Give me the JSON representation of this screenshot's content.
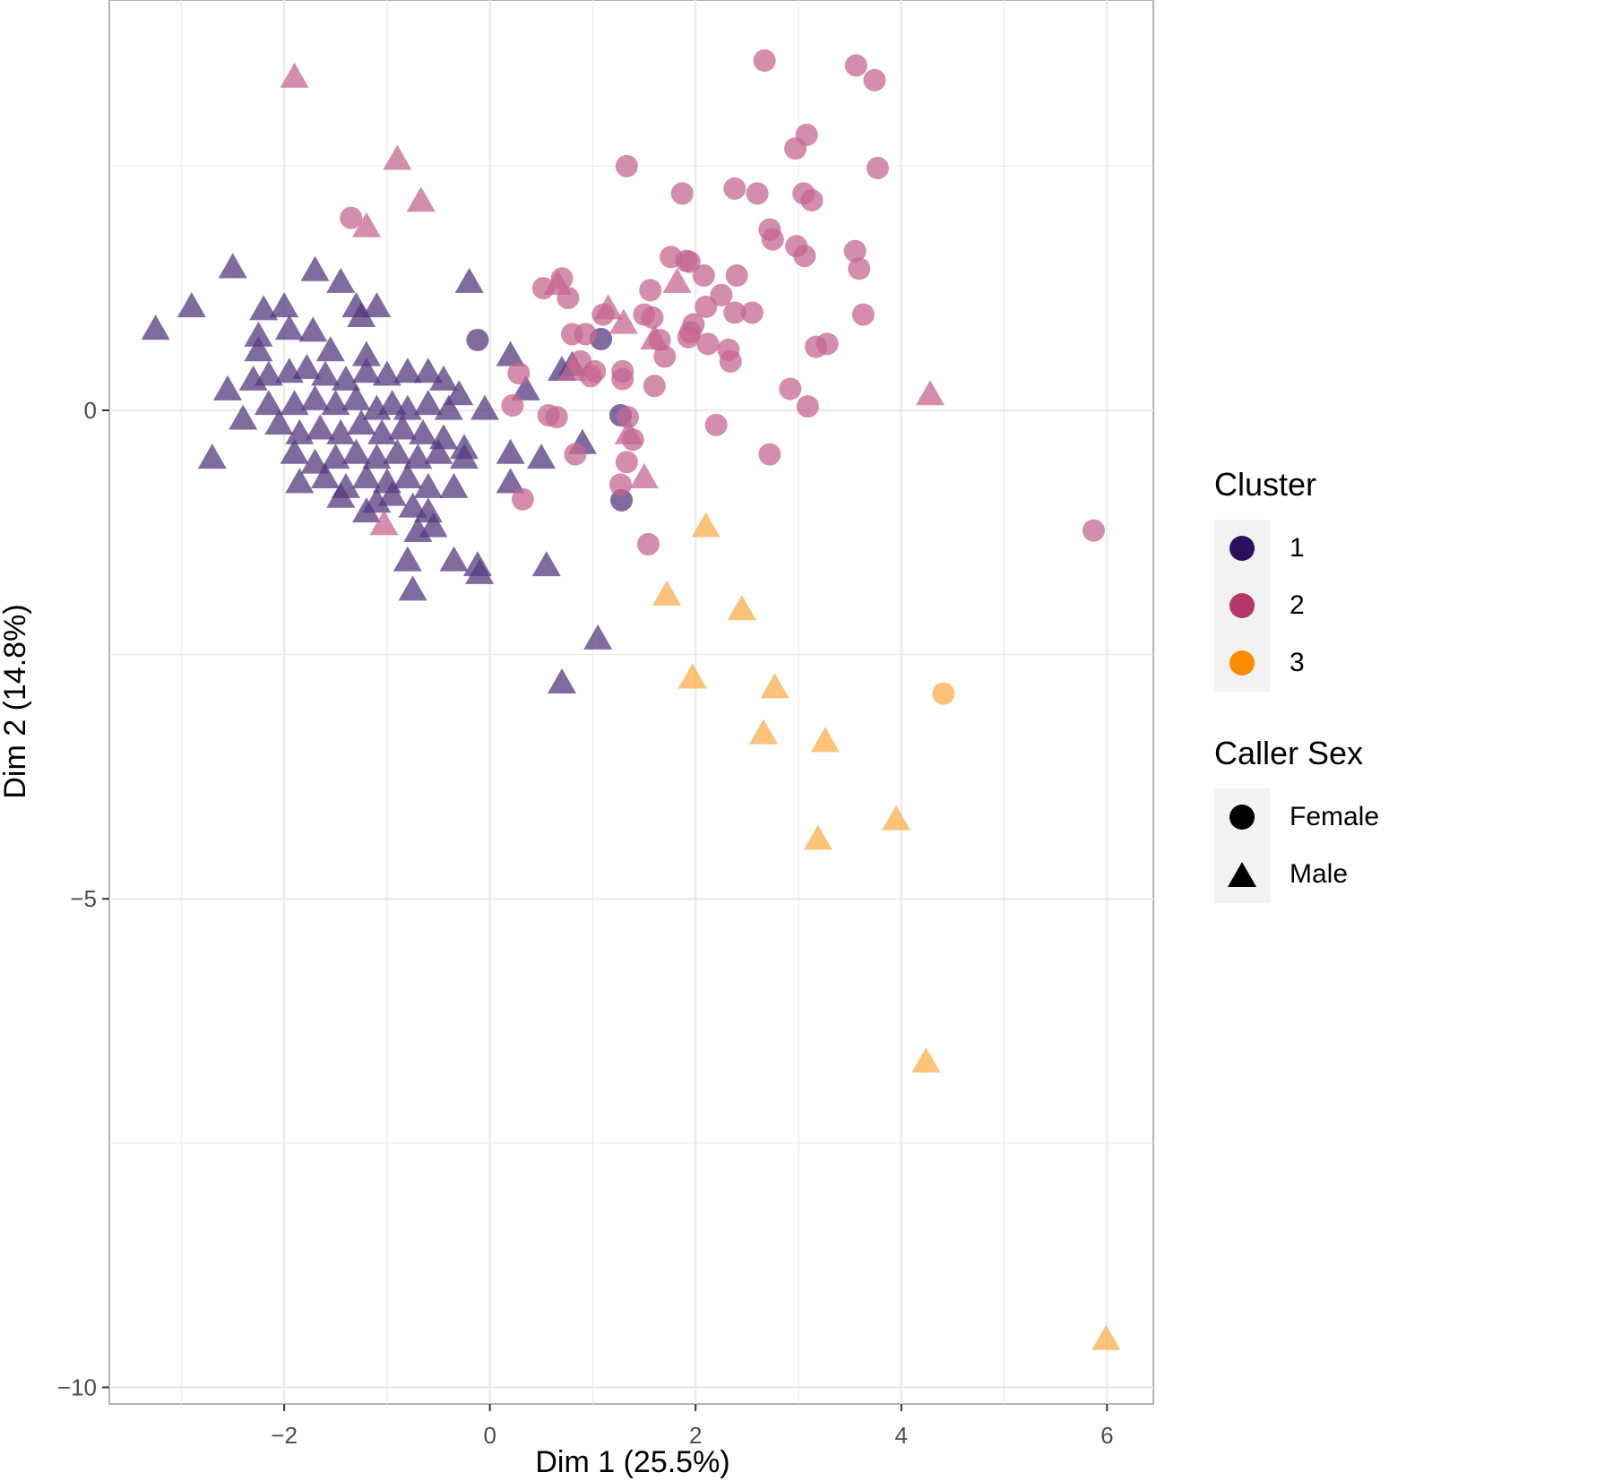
{
  "chart_data": {
    "type": "scatter",
    "title": "",
    "xlabel": "Dim 1 (25.5%)",
    "ylabel": "Dim 2 (14.8%)",
    "xlim": [
      -3.7,
      6.45
    ],
    "ylim": [
      -10.17,
      4.2
    ],
    "x_ticks": [
      -2,
      0,
      2,
      4,
      6
    ],
    "x_tick_labels": [
      "−2",
      "0",
      "2",
      "4",
      "6"
    ],
    "y_ticks": [
      -10,
      -5,
      0
    ],
    "y_tick_labels": [
      "−10",
      "−5",
      "0"
    ],
    "grid": true,
    "legend_position": "right",
    "legends": [
      {
        "title": "Cluster",
        "entries": [
          {
            "label": "1",
            "color": "#2d0f5e"
          },
          {
            "label": "2",
            "color": "#b5386a"
          },
          {
            "label": "3",
            "color": "#fb8c00"
          }
        ]
      },
      {
        "title": "Caller Sex",
        "entries": [
          {
            "label": "Female",
            "shape": "circle"
          },
          {
            "label": "Male",
            "shape": "triangle"
          }
        ]
      }
    ],
    "colors": {
      "1": "#55397f",
      "2": "#c46792",
      "3": "#f9ad4e"
    },
    "series": [
      {
        "name": "1",
        "female": [
          [
            -0.12,
            0.72
          ],
          [
            1.08,
            0.73
          ],
          [
            1.27,
            -0.05
          ],
          [
            1.28,
            -0.92
          ]
        ],
        "male": [
          [
            -3.25,
            0.82
          ],
          [
            -2.9,
            1.05
          ],
          [
            -2.5,
            1.45
          ],
          [
            -2.2,
            1.02
          ],
          [
            -2.25,
            0.75
          ],
          [
            -2.25,
            0.6
          ],
          [
            -2.0,
            1.05
          ],
          [
            -1.95,
            0.82
          ],
          [
            -1.7,
            1.42
          ],
          [
            -1.72,
            0.8
          ],
          [
            -1.45,
            1.3
          ],
          [
            -1.3,
            1.05
          ],
          [
            -1.25,
            0.95
          ],
          [
            -1.1,
            1.05
          ],
          [
            -1.55,
            0.6
          ],
          [
            -1.2,
            0.55
          ],
          [
            -2.55,
            0.2
          ],
          [
            -2.3,
            0.3
          ],
          [
            -2.15,
            0.35
          ],
          [
            -1.95,
            0.38
          ],
          [
            -1.78,
            0.42
          ],
          [
            -1.6,
            0.35
          ],
          [
            -1.4,
            0.3
          ],
          [
            -1.2,
            0.38
          ],
          [
            -1.0,
            0.35
          ],
          [
            -0.8,
            0.38
          ],
          [
            -0.6,
            0.38
          ],
          [
            -0.45,
            0.3
          ],
          [
            -0.3,
            0.15
          ],
          [
            -0.05,
            0.0
          ],
          [
            -2.4,
            -0.1
          ],
          [
            -2.15,
            0.05
          ],
          [
            -1.9,
            0.05
          ],
          [
            -1.7,
            0.1
          ],
          [
            -1.5,
            0.05
          ],
          [
            -1.3,
            0.1
          ],
          [
            -1.1,
            0.0
          ],
          [
            -0.95,
            0.05
          ],
          [
            -0.8,
            0.0
          ],
          [
            -0.6,
            0.05
          ],
          [
            -0.4,
            0.0
          ],
          [
            -2.05,
            -0.15
          ],
          [
            -1.85,
            -0.25
          ],
          [
            -1.65,
            -0.2
          ],
          [
            -1.45,
            -0.25
          ],
          [
            -1.25,
            -0.15
          ],
          [
            -1.05,
            -0.25
          ],
          [
            -0.85,
            -0.2
          ],
          [
            -0.65,
            -0.25
          ],
          [
            -0.45,
            -0.3
          ],
          [
            -0.25,
            -0.4
          ],
          [
            -2.7,
            -0.5
          ],
          [
            -1.9,
            -0.45
          ],
          [
            -1.7,
            -0.55
          ],
          [
            -1.5,
            -0.5
          ],
          [
            -1.3,
            -0.45
          ],
          [
            -1.1,
            -0.5
          ],
          [
            -0.9,
            -0.45
          ],
          [
            -0.7,
            -0.5
          ],
          [
            -0.5,
            -0.45
          ],
          [
            -0.25,
            -0.5
          ],
          [
            -1.85,
            -0.75
          ],
          [
            -1.6,
            -0.7
          ],
          [
            -1.4,
            -0.8
          ],
          [
            -1.2,
            -0.7
          ],
          [
            -1.0,
            -0.75
          ],
          [
            -0.8,
            -0.7
          ],
          [
            -0.6,
            -0.8
          ],
          [
            -0.35,
            -0.8
          ],
          [
            -1.45,
            -0.9
          ],
          [
            -1.1,
            -0.95
          ],
          [
            -0.95,
            -0.88
          ],
          [
            -0.75,
            -1.0
          ],
          [
            -0.6,
            -1.05
          ],
          [
            -1.2,
            -1.05
          ],
          [
            -0.7,
            -1.25
          ],
          [
            -0.55,
            -1.2
          ],
          [
            -0.8,
            -1.55
          ],
          [
            -0.75,
            -1.85
          ],
          [
            -0.35,
            -1.55
          ],
          [
            -0.12,
            -1.6
          ],
          [
            -0.1,
            -1.68
          ],
          [
            0.2,
            0.55
          ],
          [
            0.35,
            0.2
          ],
          [
            0.2,
            -0.45
          ],
          [
            0.2,
            -0.75
          ],
          [
            0.5,
            -0.5
          ],
          [
            0.55,
            -1.6
          ],
          [
            0.7,
            0.4
          ],
          [
            0.8,
            0.45
          ],
          [
            0.9,
            -0.35
          ],
          [
            1.05,
            -2.35
          ],
          [
            0.7,
            -2.8
          ],
          [
            -0.2,
            1.3
          ]
        ]
      },
      {
        "name": "2",
        "female": [
          [
            2.67,
            3.58
          ],
          [
            3.56,
            3.53
          ],
          [
            3.74,
            3.38
          ],
          [
            1.33,
            2.5
          ],
          [
            3.08,
            2.82
          ],
          [
            2.97,
            2.68
          ],
          [
            3.77,
            2.48
          ],
          [
            1.87,
            2.22
          ],
          [
            2.38,
            2.27
          ],
          [
            2.6,
            2.22
          ],
          [
            3.05,
            2.22
          ],
          [
            3.13,
            2.15
          ],
          [
            2.72,
            1.85
          ],
          [
            2.75,
            1.75
          ],
          [
            2.98,
            1.68
          ],
          [
            3.06,
            1.58
          ],
          [
            3.55,
            1.63
          ],
          [
            3.59,
            1.45
          ],
          [
            1.76,
            1.57
          ],
          [
            1.91,
            1.53
          ],
          [
            1.94,
            1.52
          ],
          [
            2.08,
            1.38
          ],
          [
            2.4,
            1.38
          ],
          [
            1.56,
            1.23
          ],
          [
            2.25,
            1.18
          ],
          [
            0.52,
            1.25
          ],
          [
            0.7,
            1.35
          ],
          [
            0.76,
            1.15
          ],
          [
            2.1,
            1.06
          ],
          [
            1.5,
            0.98
          ],
          [
            1.98,
            0.88
          ],
          [
            1.58,
            0.95
          ],
          [
            1.1,
            0.98
          ],
          [
            2.38,
            1.0
          ],
          [
            2.55,
            1.0
          ],
          [
            3.63,
            0.98
          ],
          [
            1.95,
            0.8
          ],
          [
            1.93,
            0.75
          ],
          [
            0.8,
            0.78
          ],
          [
            0.93,
            0.78
          ],
          [
            1.65,
            0.72
          ],
          [
            2.12,
            0.68
          ],
          [
            2.32,
            0.62
          ],
          [
            3.17,
            0.65
          ],
          [
            3.28,
            0.68
          ],
          [
            1.7,
            0.55
          ],
          [
            2.34,
            0.5
          ],
          [
            0.88,
            0.5
          ],
          [
            1.02,
            0.4
          ],
          [
            1.29,
            0.4
          ],
          [
            0.28,
            0.38
          ],
          [
            1.29,
            0.32
          ],
          [
            1.6,
            0.25
          ],
          [
            0.98,
            0.35
          ],
          [
            2.92,
            0.22
          ],
          [
            0.22,
            0.05
          ],
          [
            3.09,
            0.04
          ],
          [
            0.57,
            -0.05
          ],
          [
            0.65,
            -0.07
          ],
          [
            2.2,
            -0.15
          ],
          [
            1.34,
            -0.07
          ],
          [
            1.39,
            -0.3
          ],
          [
            0.83,
            -0.45
          ],
          [
            1.33,
            -0.53
          ],
          [
            2.72,
            -0.45
          ],
          [
            1.27,
            -0.76
          ],
          [
            0.32,
            -0.91
          ],
          [
            1.54,
            -1.37
          ],
          [
            5.87,
            -1.23
          ],
          [
            -1.35,
            1.97
          ]
        ],
        "male": [
          [
            -1.9,
            3.4
          ],
          [
            -0.9,
            2.56
          ],
          [
            -0.67,
            2.13
          ],
          [
            -1.2,
            1.87
          ],
          [
            0.66,
            1.28
          ],
          [
            1.82,
            1.3
          ],
          [
            1.15,
            1.03
          ],
          [
            1.3,
            0.88
          ],
          [
            1.6,
            0.72
          ],
          [
            0.8,
            0.4
          ],
          [
            1.35,
            -0.25
          ],
          [
            1.5,
            -0.7
          ],
          [
            -1.03,
            -1.18
          ],
          [
            4.28,
            0.15
          ]
        ]
      },
      {
        "name": "3",
        "female": [
          [
            4.41,
            -2.9
          ]
        ],
        "male": [
          [
            2.1,
            -1.2
          ],
          [
            1.72,
            -1.9
          ],
          [
            2.45,
            -2.05
          ],
          [
            1.97,
            -2.75
          ],
          [
            2.77,
            -2.85
          ],
          [
            2.66,
            -3.32
          ],
          [
            3.26,
            -3.4
          ],
          [
            3.95,
            -4.2
          ],
          [
            3.19,
            -4.4
          ],
          [
            4.24,
            -6.68
          ],
          [
            5.99,
            -9.52
          ]
        ]
      }
    ]
  }
}
